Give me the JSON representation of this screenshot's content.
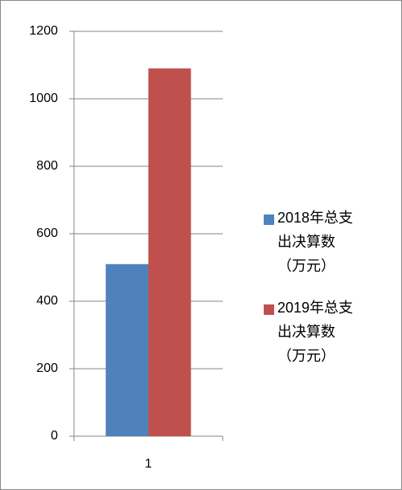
{
  "chart_data": {
    "type": "bar",
    "categories": [
      "1"
    ],
    "series": [
      {
        "name": "2018年总支出决算数（万元）",
        "color": "#4f81bd",
        "values": [
          510
        ]
      },
      {
        "name": "2019年总支出决算数（万元）",
        "color": "#c0504d",
        "values": [
          1090
        ]
      }
    ],
    "ylim": [
      0,
      1200
    ],
    "yticks": [
      0,
      200,
      400,
      600,
      800,
      1000,
      1200
    ],
    "grid": true,
    "legend": "right"
  }
}
